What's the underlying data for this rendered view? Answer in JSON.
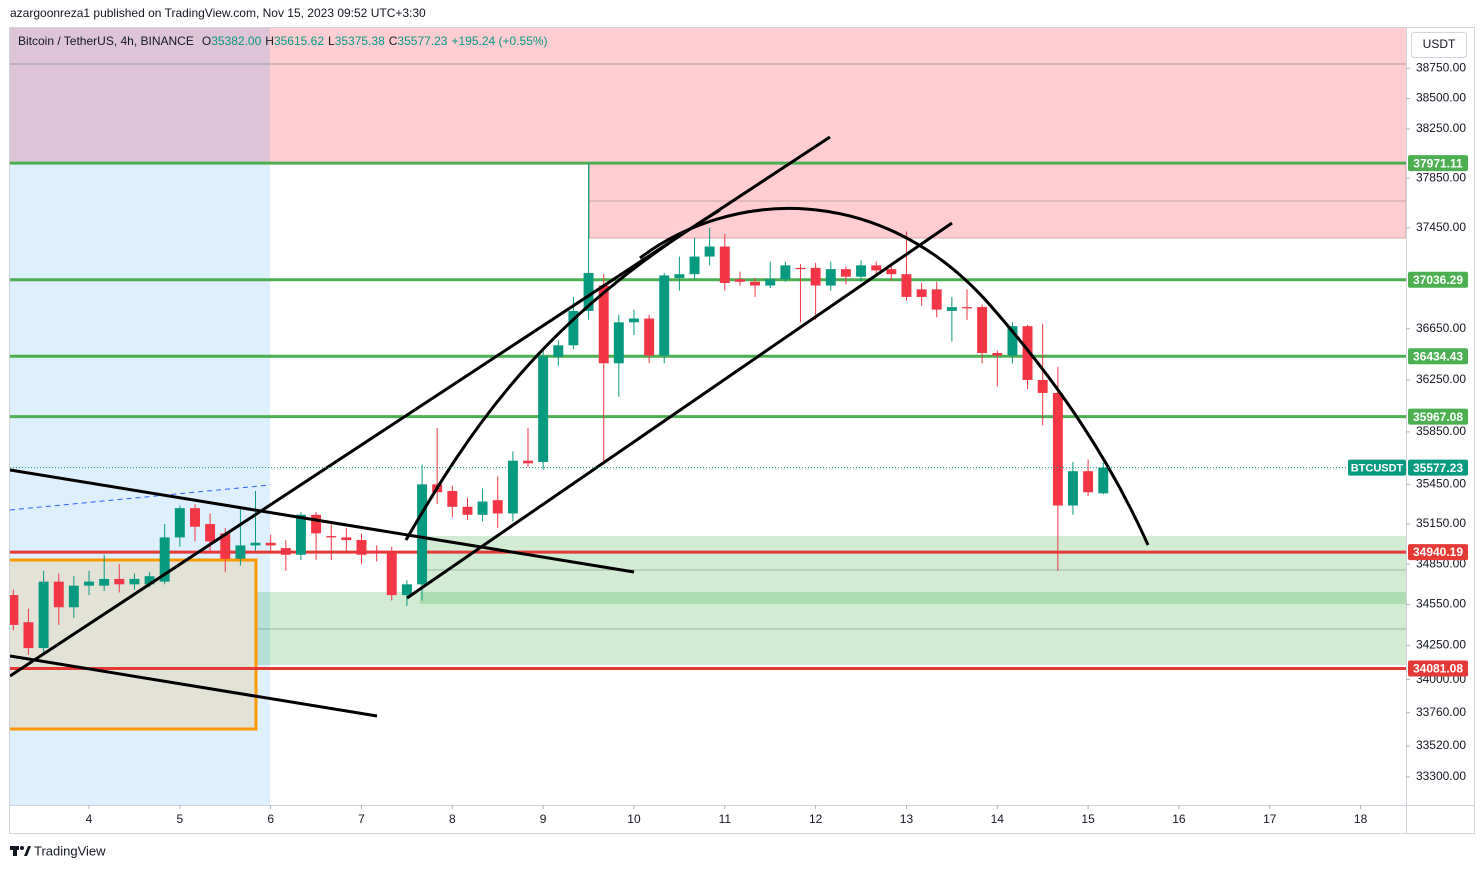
{
  "header": {
    "publisher": "azargoonreza1 published on TradingView.com, Nov 15, 2023 09:52 UTC+3:30"
  },
  "chart_data": {
    "type": "candlestick",
    "title": "Bitcoin / TetherUS, 4h, BINANCE",
    "ohlc_legend": [
      {
        "key": "O",
        "value": "35382.00"
      },
      {
        "key": "H",
        "value": "35615.62"
      },
      {
        "key": "L",
        "value": "35375.38"
      },
      {
        "key": "C",
        "value": "35577.23"
      }
    ],
    "change": "+195.24 (+0.55%)",
    "currency": "USDT",
    "symbol_tag": "BTCUSDT",
    "x": [
      3.167,
      3.333,
      3.5,
      3.667,
      3.833,
      4,
      4.167,
      4.333,
      4.5,
      4.667,
      4.833,
      5,
      5.167,
      5.333,
      5.5,
      5.667,
      5.833,
      6,
      6.167,
      6.333,
      6.5,
      6.667,
      6.833,
      7,
      7.167,
      7.333,
      7.5,
      7.667,
      7.833,
      8,
      8.167,
      8.333,
      8.5,
      8.667,
      8.833,
      9,
      9.167,
      9.333,
      9.5,
      9.667,
      9.833,
      10,
      10.167,
      10.333,
      10.5,
      10.667,
      10.833,
      11,
      11.167,
      11.333,
      11.5,
      11.667,
      11.833,
      12,
      12.167,
      12.333,
      12.5,
      12.667,
      12.833,
      13,
      13.167,
      13.333,
      13.5,
      13.667,
      13.833,
      14,
      14.167,
      14.333,
      14.5,
      14.667,
      14.833,
      15,
      15.167
    ],
    "open": [
      34620,
      34420,
      34230,
      34720,
      34530,
      34690,
      34690,
      34740,
      34700,
      34700,
      34720,
      35050,
      35270,
      35150,
      35080,
      34890,
      34990,
      35010,
      34970,
      34920,
      35220,
      35060,
      35050,
      35030,
      34950,
      34930,
      34620,
      34700,
      35450,
      35400,
      35280,
      35220,
      35330,
      35230,
      35630,
      35620,
      36430,
      36520,
      36790,
      36990,
      36380,
      36700,
      36730,
      36440,
      37050,
      37080,
      37220,
      37300,
      37040,
      37020,
      36990,
      37040,
      37130,
      37130,
      36990,
      37120,
      37060,
      37150,
      37120,
      37080,
      36960,
      36960,
      36790,
      36820,
      36820,
      36460,
      36440,
      36670,
      36250,
      36150,
      35290,
      35550,
      35382
    ],
    "high": [
      34660,
      34520,
      34800,
      34780,
      34760,
      34800,
      34920,
      34850,
      34780,
      34790,
      35150,
      35290,
      35300,
      35230,
      35120,
      35260,
      35400,
      35070,
      35030,
      35240,
      35240,
      35150,
      35120,
      35080,
      34990,
      34980,
      34730,
      35600,
      35880,
      35440,
      35350,
      35420,
      35510,
      35700,
      35880,
      36500,
      36560,
      36900,
      37971,
      37080,
      36760,
      36800,
      36760,
      37090,
      37220,
      37370,
      37450,
      37400,
      37100,
      37050,
      37180,
      37180,
      37160,
      37170,
      37180,
      37140,
      37190,
      37180,
      37170,
      37420,
      37010,
      37020,
      36900,
      36960,
      36840,
      36480,
      36700,
      36680,
      36690,
      36350,
      35620,
      35640,
      35615.62
    ],
    "low": [
      34360,
      34180,
      34180,
      34400,
      34450,
      34620,
      34650,
      34640,
      34660,
      34680,
      34700,
      34980,
      35020,
      34950,
      34790,
      34840,
      34950,
      34950,
      34800,
      34880,
      34880,
      34880,
      34930,
      34850,
      34870,
      34580,
      34540,
      34580,
      35300,
      35200,
      35180,
      35170,
      35120,
      35170,
      35580,
      35560,
      36360,
      36490,
      36720,
      35620,
      36120,
      36600,
      36380,
      36380,
      36950,
      37040,
      37150,
      36950,
      36990,
      36900,
      36970,
      37020,
      36700,
      36720,
      36950,
      37000,
      37020,
      37060,
      37030,
      36870,
      36830,
      36740,
      36550,
      36720,
      36380,
      36200,
      36380,
      36180,
      35900,
      34800,
      35220,
      35360,
      35375.38
    ],
    "close": [
      34400,
      34230,
      34720,
      34530,
      34690,
      34720,
      34740,
      34700,
      34740,
      34760,
      35050,
      35270,
      35130,
      35020,
      34890,
      34990,
      35010,
      34990,
      34920,
      35220,
      35080,
      35050,
      35030,
      34920,
      34930,
      34620,
      34700,
      35450,
      35390,
      35280,
      35220,
      35320,
      35230,
      35630,
      35610,
      36434,
      36520,
      36790,
      37090,
      36380,
      36700,
      36730,
      36440,
      37070,
      37080,
      37220,
      37300,
      37010,
      37020,
      36990,
      37040,
      37150,
      37120,
      36990,
      37120,
      37060,
      37150,
      37110,
      37080,
      36900,
      36900,
      36800,
      36820,
      36810,
      36460,
      36440,
      36670,
      36250,
      36150,
      35290,
      35550,
      35390,
      35577.23
    ],
    "up_color": "#089981",
    "down_color": "#f23645",
    "xlim": [
      3.13,
      18.5
    ],
    "xticks": [
      4,
      5,
      6,
      7,
      8,
      9,
      10,
      11,
      12,
      13,
      14,
      15,
      16,
      17,
      18
    ],
    "ylim": [
      33100,
      39085
    ],
    "log_scale": true,
    "yticks": [
      {
        "value": 38750,
        "label": "38750.00"
      },
      {
        "value": 38500,
        "label": "38500.00"
      },
      {
        "value": 38250,
        "label": "38250.00"
      },
      {
        "value": 37850,
        "label": "37850.00"
      },
      {
        "value": 37450,
        "label": "37450.00"
      },
      {
        "value": 36650,
        "label": "36650.00"
      },
      {
        "value": 36250,
        "label": "36250.00"
      },
      {
        "value": 35850,
        "label": "35850.00"
      },
      {
        "value": 35450,
        "label": "35450.00"
      },
      {
        "value": 35150,
        "label": "35150.00"
      },
      {
        "value": 34850,
        "label": "34850.00"
      },
      {
        "value": 34550,
        "label": "34550.00"
      },
      {
        "value": 34250,
        "label": "34250.00"
      },
      {
        "value": 34000,
        "label": "34000.00"
      },
      {
        "value": 33760,
        "label": "33760.00"
      },
      {
        "value": 33520,
        "label": "33520.00"
      },
      {
        "value": 33300,
        "label": "33300.00"
      }
    ],
    "levels": [
      {
        "value": 37971.11,
        "color": "#4caf50"
      },
      {
        "value": 37036.29,
        "color": "#4caf50"
      },
      {
        "value": 36434.43,
        "color": "#4caf50"
      },
      {
        "value": 35967.08,
        "color": "#4caf50"
      },
      {
        "value": 34940.19,
        "color": "#e53935"
      },
      {
        "value": 34081.08,
        "color": "#e53935"
      }
    ]
  },
  "footer": {
    "brand": "TradingView"
  }
}
